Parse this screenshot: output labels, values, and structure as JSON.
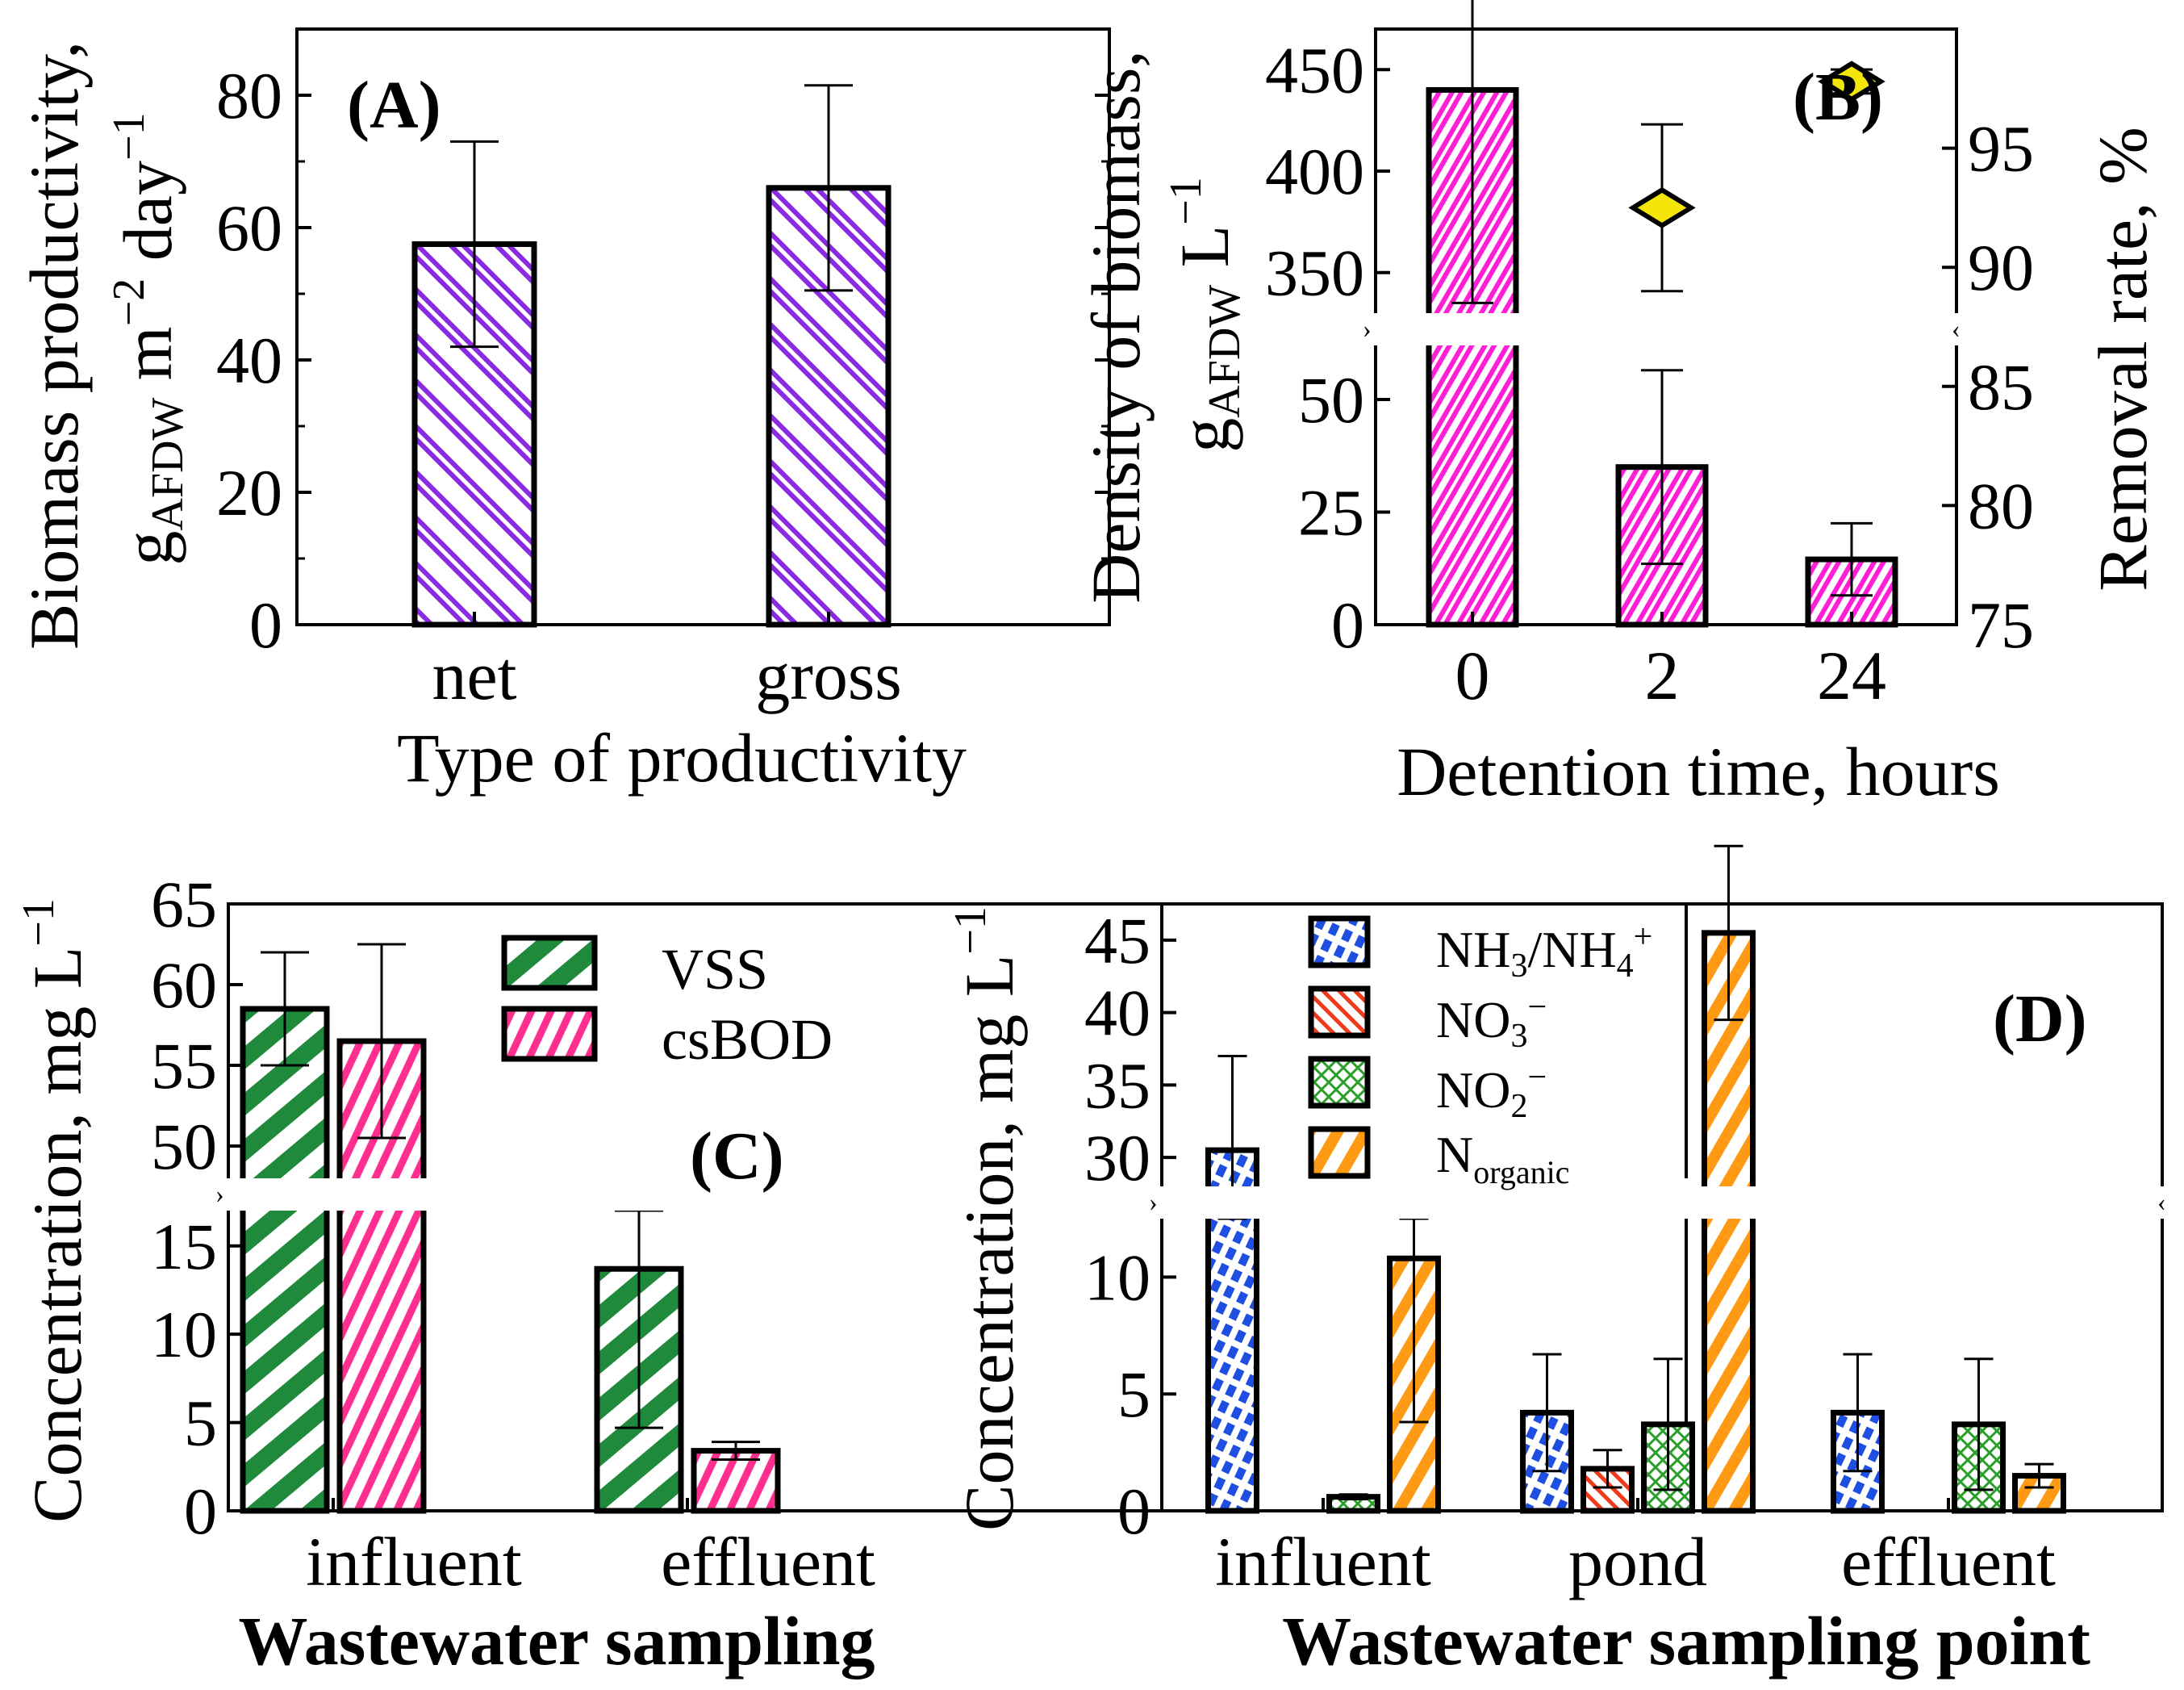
{
  "colors": {
    "purple": "#8a2be2",
    "magenta": "#ff1fd6",
    "green": "#1f8a3c",
    "pink": "#ff2f8f",
    "blue": "#1f4fe0",
    "red": "#f03a1c",
    "green2": "#2aa02a",
    "orange": "#ff9a14",
    "diamond": "#f5e60a"
  },
  "chart_data": [
    {
      "id": "A",
      "type": "bar",
      "panel_label": "(A)",
      "title": "",
      "xlabel": "Type of productivity",
      "ylabel_line1": "Biomass productivity,",
      "ylabel_line2": "gAFDW m−2 day−1",
      "ylabel_parts": {
        "g": "g",
        "sub": "AFDW",
        "m": " m",
        "sup1": "−2",
        "day": " day",
        "sup2": "−1"
      },
      "categories": [
        "net",
        "gross"
      ],
      "values": [
        57.5,
        66
      ],
      "errors": [
        15.5,
        15.5
      ],
      "ylim": [
        0,
        90
      ],
      "yticks": [
        "0",
        "20",
        "40",
        "60",
        "80"
      ],
      "ytick_values": [
        0,
        20,
        40,
        60,
        80
      ]
    },
    {
      "id": "B",
      "type": "bar",
      "panel_label": "(B)",
      "xlabel": "Detention time, hours",
      "ylabel_line1": "Density of biomass,",
      "ylabel_line2": "gAFDW L−1",
      "ylabel_parts": {
        "g": "g",
        "sub": "AFDW",
        "L": " L",
        "sup": "−1"
      },
      "y2label": "Removal rate, %",
      "categories": [
        "0",
        "2",
        "24"
      ],
      "values": [
        440,
        35,
        14.5
      ],
      "errors": [
        105,
        21.5,
        8
      ],
      "y_broken_axis": {
        "lower": [
          0,
          62
        ],
        "upper": [
          330,
          470
        ]
      },
      "yticks_lower": [
        "0",
        "25",
        "50"
      ],
      "ytick_values_lower": [
        0,
        25,
        50
      ],
      "yticks_upper": [
        "350",
        "400",
        "450"
      ],
      "ytick_values_upper": [
        350,
        400,
        450
      ],
      "removal_series": {
        "name": "Removal rate",
        "categories": [
          "2",
          "24"
        ],
        "values": [
          92.5,
          97.8
        ],
        "errors": [
          3.5,
          0.5
        ]
      },
      "y2lim": [
        75,
        100
      ],
      "y2ticks": [
        "75",
        "80",
        "85",
        "90",
        "95"
      ],
      "y2tick_values": [
        75,
        80,
        85,
        90,
        95
      ]
    },
    {
      "id": "C",
      "type": "bar",
      "panel_label": "(C)",
      "xlabel": "Wastewater sampling",
      "ylabel": "Concentration, mg L−1",
      "ylabel_parts": {
        "main": "Concentration, mg L",
        "sup": "−1"
      },
      "categories": [
        "influent",
        "effluent"
      ],
      "series": [
        {
          "name": "VSS",
          "values": [
            58.5,
            13.7
          ],
          "errors": [
            3.5,
            9
          ]
        },
        {
          "name": "csBOD",
          "values": [
            56.5,
            3.4
          ],
          "errors": [
            6,
            0.5
          ]
        }
      ],
      "y_broken_axis": {
        "lower": [
          0,
          17
        ],
        "upper": [
          48,
          65
        ]
      },
      "yticks_lower": [
        "0",
        "5",
        "10",
        "15"
      ],
      "ytick_values_lower": [
        0,
        5,
        10,
        15
      ],
      "yticks_upper": [
        "50",
        "55",
        "60",
        "65"
      ],
      "ytick_values_upper": [
        50,
        55,
        60,
        65
      ],
      "legend_position": "top-right"
    },
    {
      "id": "D",
      "type": "bar",
      "panel_label": "(D)",
      "xlabel": "Wastewater sampling point",
      "ylabel": "Concentration, mg L−1",
      "ylabel_parts": {
        "main": "Concentration, mg L",
        "sup": "−1"
      },
      "categories": [
        "influent",
        "pond",
        "effluent"
      ],
      "series": [
        {
          "name": "NH3/NH4+",
          "label_parts": {
            "a": "NH",
            "b": "3",
            "c": "/NH",
            "d": "4",
            "e": "+"
          },
          "values": [
            30.5,
            4.2,
            4.2
          ],
          "errors": [
            6.5,
            2.5,
            2.5
          ]
        },
        {
          "name": "NO3−",
          "label_parts": {
            "a": "NO",
            "b": "3",
            "c": "−"
          },
          "values": [
            0,
            1.8,
            0
          ],
          "errors": [
            0,
            0.8,
            0
          ]
        },
        {
          "name": "NO2−",
          "label_parts": {
            "a": "NO",
            "b": "2",
            "c": "−"
          },
          "values": [
            0.6,
            3.7,
            3.7
          ],
          "errors": [
            0.1,
            2.8,
            2.8
          ]
        },
        {
          "name": "Norganic",
          "label_parts": {
            "a": "N",
            "b": "organic"
          },
          "values": [
            10.8,
            45.5,
            1.5
          ],
          "errors": [
            7,
            6,
            0.5
          ]
        }
      ],
      "y_broken_axis": {
        "lower": [
          0,
          12.5
        ],
        "upper": [
          28,
          47.5
        ]
      },
      "yticks_lower": [
        "0",
        "5",
        "10"
      ],
      "ytick_values_lower": [
        0,
        5,
        10
      ],
      "yticks_upper": [
        "30",
        "35",
        "40",
        "45"
      ],
      "ytick_values_upper": [
        30,
        35,
        40,
        45
      ],
      "legend_position": "top-left"
    }
  ]
}
